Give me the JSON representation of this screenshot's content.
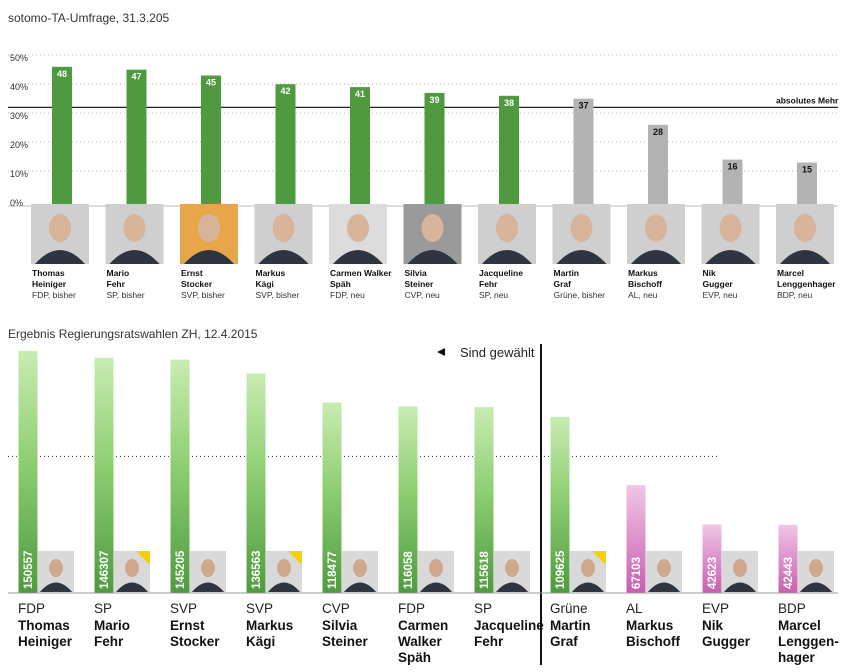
{
  "poll": {
    "title": "sotomo-TA-Umfrage, 31.3.205",
    "yticks": [
      "0%",
      "10%",
      "20%",
      "30%",
      "40%",
      "50%"
    ],
    "ref_label": "absolutes Mehr"
  },
  "result": {
    "title": "Ergebnis Regierungsratswahlen ZH, 12.4.2015",
    "elected_label": "Sind gewählt"
  },
  "candidates": [
    {
      "first": "Thomas",
      "last": "Heiniger",
      "info": "FDP, bisher",
      "party": "FDP",
      "res_lines": [
        "Thomas",
        "Heiniger"
      ],
      "status": "elected",
      "poll_color": "green"
    },
    {
      "first": "Mario",
      "last": "Fehr",
      "info": "SP, bisher",
      "party": "SP",
      "res_lines": [
        "Mario",
        "Fehr"
      ],
      "status": "elected",
      "poll_color": "green"
    },
    {
      "first": "Ernst",
      "last": "Stocker",
      "info": "SVP, bisher",
      "party": "SVP",
      "res_lines": [
        "Ernst",
        "Stocker"
      ],
      "status": "elected",
      "poll_color": "green"
    },
    {
      "first": "Markus",
      "last": "Kägi",
      "info": "SVP, bisher",
      "party": "SVP",
      "res_lines": [
        "Markus",
        "Kägi"
      ],
      "status": "elected",
      "poll_color": "green"
    },
    {
      "first": "Carmen Walker",
      "last": "Späh",
      "info": "FDP, neu",
      "party": "FDP",
      "res_lines": [
        "Carmen",
        "Walker",
        "Späh"
      ],
      "status": "elected",
      "poll_color": "green"
    },
    {
      "first": "Silvia",
      "last": "Steiner",
      "info": "CVP, neu",
      "party": "CVP",
      "res_lines": [
        "Silvia",
        "Steiner"
      ],
      "status": "elected",
      "poll_color": "green"
    },
    {
      "first": "Jacqueline",
      "last": "Fehr",
      "info": "SP, neu",
      "party": "SP",
      "res_lines": [
        "Jacqueline",
        "Fehr"
      ],
      "status": "elected",
      "poll_color": "green"
    },
    {
      "first": "Martin",
      "last": "Graf",
      "info": "Grüne, bisher",
      "party": "Grüne",
      "res_lines": [
        "Martin",
        "Graf"
      ],
      "status": "green",
      "poll_color": "gray"
    },
    {
      "first": "Markus",
      "last": "Bischoff",
      "info": "AL, neu",
      "party": "AL",
      "res_lines": [
        "Markus",
        "Bischoff"
      ],
      "status": "pink",
      "poll_color": "gray"
    },
    {
      "first": "Nik",
      "last": "Gugger",
      "info": "EVP, neu",
      "party": "EVP",
      "res_lines": [
        "Nik",
        "Gugger"
      ],
      "status": "pink",
      "poll_color": "gray"
    },
    {
      "first": "Marcel",
      "last": "Lenggenhager",
      "info": "BDP, neu",
      "party": "BDP",
      "res_lines": [
        "Marcel",
        "Lenggen-",
        "hager"
      ],
      "status": "pink",
      "poll_color": "gray"
    }
  ],
  "chart_data": [
    {
      "type": "bar",
      "title": "sotomo-TA-Umfrage, 31.3.205",
      "categories": [
        "Thomas Heiniger",
        "Mario Fehr",
        "Ernst Stocker",
        "Markus Kägi",
        "Carmen Walker Späh",
        "Silvia Steiner",
        "Jacqueline Fehr",
        "Martin Graf",
        "Markus Bischoff",
        "Nik Gugger",
        "Marcel Lenggenhager"
      ],
      "values": [
        48,
        47,
        45,
        42,
        41,
        39,
        38,
        37,
        28,
        16,
        15
      ],
      "ylim": [
        0,
        50
      ],
      "yunit": "%",
      "reference_line": {
        "label": "absolutes Mehr",
        "value": 34
      },
      "grid": true
    },
    {
      "type": "bar",
      "title": "Ergebnis Regierungsratswahlen ZH, 12.4.2015",
      "categories": [
        "Thomas Heiniger",
        "Mario Fehr",
        "Ernst Stocker",
        "Markus Kägi",
        "Silvia Steiner",
        "Carmen Walker Späh",
        "Jacqueline Fehr",
        "Martin Graf",
        "Markus Bischoff",
        "Nik Gugger",
        "Marcel Lenggenhager"
      ],
      "values": [
        150557,
        146307,
        145205,
        136563,
        118477,
        116058,
        115618,
        109625,
        67103,
        42623,
        42443
      ],
      "ylim": [
        0,
        150557
      ],
      "reference_line": {
        "value": 85000
      }
    }
  ],
  "colors": {
    "green_dark": "#4f9a3f",
    "green_light": "#c8ecb2",
    "gray": "#b3b3b3",
    "pink_dark": "#c85fb0",
    "pink_light": "#f0c6e6",
    "photo_accent": "#f6d000"
  }
}
